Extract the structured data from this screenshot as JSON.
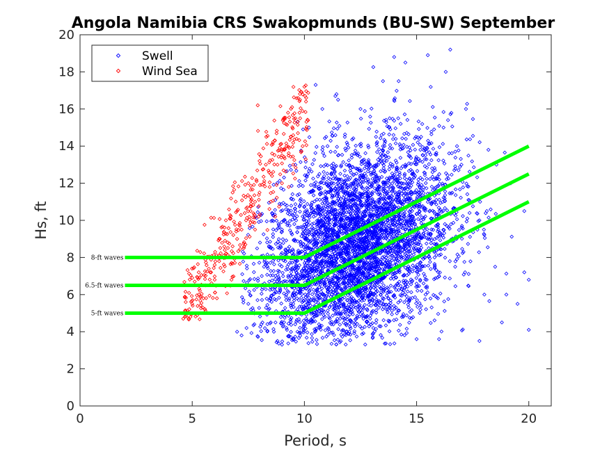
{
  "chart_data": {
    "type": "scatter",
    "title": "Angola Namibia CRS Swakopmunds (BU-SW) September",
    "xlabel": "Period, s",
    "ylabel": "Hs, ft",
    "xlim": [
      0,
      21
    ],
    "ylim": [
      0,
      20
    ],
    "xticks": [
      0,
      5,
      10,
      15,
      20
    ],
    "yticks": [
      0,
      2,
      4,
      6,
      8,
      10,
      12,
      14,
      16,
      18,
      20
    ],
    "grid": false,
    "legend": {
      "placement": "top-left",
      "entries": [
        {
          "label": "Swell",
          "color": "#0000ff"
        },
        {
          "label": "Wind Sea",
          "color": "#ff0000"
        }
      ]
    },
    "series": [
      {
        "name": "Swell",
        "color": "#0000ff",
        "marker": "diamond",
        "approx_points": 4500,
        "points": [
          [
            8.5,
            4.5
          ],
          [
            8.8,
            3.5
          ],
          [
            9.2,
            4.2
          ],
          [
            9.5,
            5.5
          ],
          [
            9.8,
            6.2
          ],
          [
            10.0,
            7.0
          ],
          [
            10.2,
            8.5
          ],
          [
            10.5,
            9.5
          ],
          [
            10.8,
            10.5
          ],
          [
            11.0,
            11.5
          ],
          [
            11.2,
            12.5
          ],
          [
            11.5,
            13.5
          ],
          [
            11.8,
            14.5
          ],
          [
            12.0,
            9.0
          ],
          [
            12.2,
            10.0
          ],
          [
            12.5,
            11.0
          ],
          [
            12.8,
            8.0
          ],
          [
            13.0,
            12.0
          ],
          [
            13.2,
            13.0
          ],
          [
            13.5,
            14.0
          ],
          [
            13.8,
            15.5
          ],
          [
            14.0,
            16.5
          ],
          [
            14.2,
            17.5
          ],
          [
            14.5,
            18.5
          ],
          [
            14.8,
            12.5
          ],
          [
            15.0,
            11.0
          ],
          [
            15.2,
            10.0
          ],
          [
            15.5,
            9.0
          ],
          [
            15.8,
            8.0
          ],
          [
            16.0,
            7.0
          ],
          [
            16.2,
            15.0
          ],
          [
            16.5,
            19.2
          ],
          [
            16.8,
            14.0
          ],
          [
            17.0,
            13.0
          ],
          [
            17.5,
            11.0
          ],
          [
            18.0,
            9.5
          ],
          [
            18.5,
            7.5
          ],
          [
            19.0,
            6.0
          ],
          [
            19.5,
            5.5
          ],
          [
            20.0,
            6.8
          ],
          [
            20.0,
            4.1
          ],
          [
            19.8,
            7.2
          ],
          [
            18.8,
            4.5
          ],
          [
            17.8,
            3.5
          ],
          [
            16.0,
            3.6
          ],
          [
            15.0,
            3.6
          ],
          [
            10.5,
            17.3
          ],
          [
            10.2,
            15.0
          ],
          [
            9.6,
            13.0
          ],
          [
            10.8,
            16.0
          ],
          [
            11.5,
            16.5
          ],
          [
            12.5,
            16.0
          ],
          [
            13.5,
            17.5
          ],
          [
            14.0,
            18.8
          ],
          [
            15.5,
            18.9
          ],
          [
            16.3,
            18.0
          ],
          [
            17.2,
            16.0
          ],
          [
            18.2,
            13.8
          ],
          [
            19.2,
            12.0
          ],
          [
            19.8,
            10.5
          ],
          [
            7.5,
            5.5
          ],
          [
            7.8,
            6.5
          ],
          [
            8.2,
            7.5
          ],
          [
            8.5,
            8.5
          ],
          [
            9.0,
            9.5
          ],
          [
            9.3,
            10.5
          ],
          [
            7.0,
            4.0
          ],
          [
            7.2,
            3.8
          ],
          [
            9.0,
            3.3
          ],
          [
            12.0,
            4.0
          ],
          [
            13.0,
            5.0
          ],
          [
            11.5,
            6.0
          ],
          [
            12.5,
            7.0
          ],
          [
            14.0,
            8.5
          ],
          [
            13.8,
            10.5
          ],
          [
            11.8,
            11.0
          ],
          [
            12.3,
            12.8
          ],
          [
            10.8,
            13.8
          ],
          [
            14.5,
            13.0
          ],
          [
            15.2,
            14.5
          ]
        ]
      },
      {
        "name": "Wind Sea",
        "color": "#ff0000",
        "marker": "diamond",
        "approx_points": 400,
        "points": [
          [
            4.6,
            4.7
          ],
          [
            5.0,
            5.5
          ],
          [
            5.3,
            6.0
          ],
          [
            5.6,
            6.5
          ],
          [
            5.8,
            7.2
          ],
          [
            6.0,
            7.6
          ],
          [
            6.2,
            7.8
          ],
          [
            6.5,
            8.2
          ],
          [
            6.8,
            8.6
          ],
          [
            7.0,
            9.0
          ],
          [
            7.2,
            9.5
          ],
          [
            7.4,
            10.0
          ],
          [
            7.6,
            10.5
          ],
          [
            7.8,
            11.0
          ],
          [
            8.0,
            11.5
          ],
          [
            8.2,
            12.0
          ],
          [
            8.5,
            12.5
          ],
          [
            8.8,
            13.0
          ],
          [
            9.0,
            13.5
          ],
          [
            9.2,
            14.0
          ],
          [
            9.4,
            14.5
          ],
          [
            9.6,
            15.5
          ],
          [
            9.8,
            16.5
          ],
          [
            10.0,
            17.2
          ],
          [
            7.0,
            10.5
          ],
          [
            7.5,
            12.0
          ],
          [
            8.0,
            13.2
          ],
          [
            8.3,
            14.5
          ],
          [
            6.5,
            10.0
          ],
          [
            6.8,
            11.5
          ],
          [
            7.8,
            9.5
          ],
          [
            8.5,
            11.0
          ],
          [
            9.0,
            12.0
          ],
          [
            9.5,
            13.0
          ],
          [
            6.2,
            9.0
          ],
          [
            7.3,
            8.5
          ],
          [
            8.7,
            10.2
          ],
          [
            9.3,
            11.8
          ],
          [
            5.5,
            5.8
          ],
          [
            6.0,
            6.8
          ]
        ]
      }
    ],
    "threshold_lines": [
      {
        "label": "8-ft waves",
        "color": "#00ff00",
        "points": [
          [
            2,
            8
          ],
          [
            10,
            8
          ],
          [
            20,
            14
          ]
        ]
      },
      {
        "label": "6.5-ft waves",
        "color": "#00ff00",
        "points": [
          [
            2,
            6.5
          ],
          [
            10,
            6.5
          ],
          [
            20,
            12.5
          ]
        ]
      },
      {
        "label": "5-ft waves",
        "color": "#00ff00",
        "points": [
          [
            2,
            5
          ],
          [
            10,
            5
          ],
          [
            20,
            11
          ]
        ]
      }
    ]
  }
}
